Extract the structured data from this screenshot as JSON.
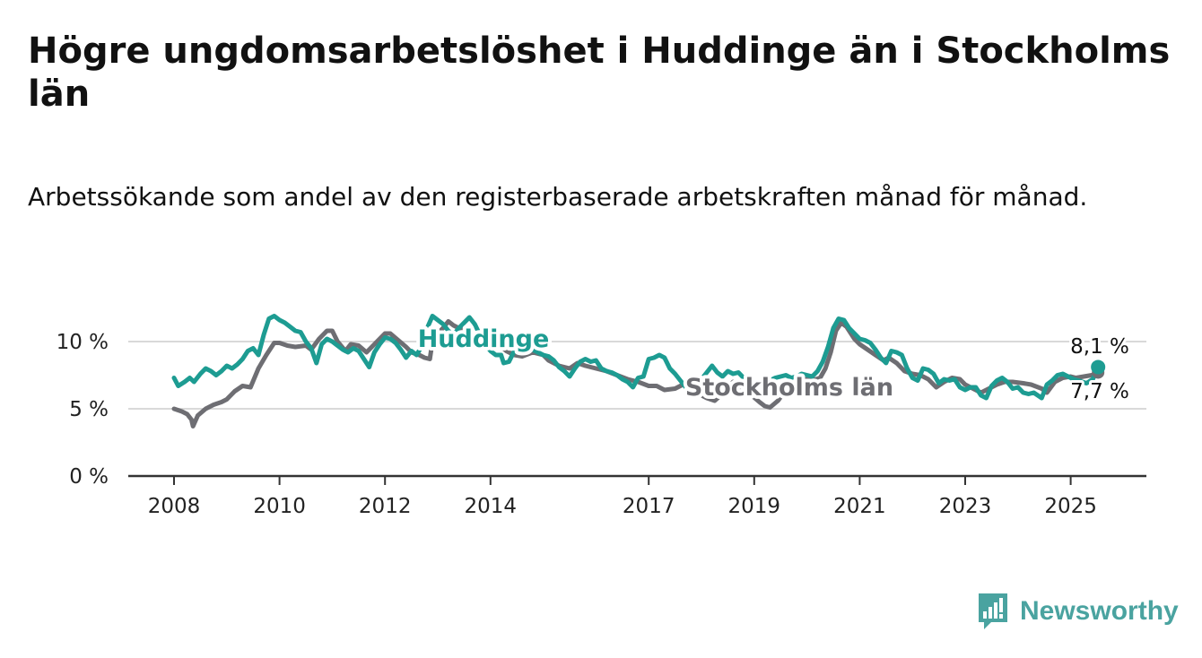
{
  "title": "Högre ungdomsarbetslöshet i Huddinge än i Stockholms län",
  "subtitle": "Arbetssökande som andel av den registerbaserade arbetskraften månad för månad.",
  "brand": {
    "name": "Newsworthy",
    "logo_icon": "bar-chart-logo-icon",
    "color": "#4aa3a0"
  },
  "chart_data": {
    "type": "line",
    "title": "Högre ungdomsarbetslöshet i Huddinge än i Stockholms län",
    "subtitle": "Arbetssökande som andel av den registerbaserade arbetskraften månad för månad.",
    "xlabel": "",
    "ylabel": "",
    "xlim": [
      2007.8,
      2026.3
    ],
    "ylim": [
      0,
      12.5
    ],
    "yticks": [
      0,
      5,
      10
    ],
    "ytick_labels": [
      "0 %",
      "5 %",
      "10 %"
    ],
    "xticks": [
      2008,
      2010,
      2012,
      2014,
      2017,
      2019,
      2021,
      2023,
      2025
    ],
    "xtick_labels": [
      "2008",
      "2010",
      "2012",
      "2014",
      "2017",
      "2019",
      "2021",
      "2023",
      "2025"
    ],
    "grid": true,
    "legend": "inline labels",
    "series": [
      {
        "name": "Stockholms län",
        "color": "#6e6e73",
        "end_label": "7,7 %",
        "points": [
          [
            2008.0,
            5.0
          ],
          [
            2008.15,
            4.8
          ],
          [
            2008.25,
            4.6
          ],
          [
            2008.33,
            4.2
          ],
          [
            2008.36,
            3.7
          ],
          [
            2008.45,
            4.5
          ],
          [
            2008.6,
            5.0
          ],
          [
            2008.75,
            5.3
          ],
          [
            2008.9,
            5.5
          ],
          [
            2009.0,
            5.7
          ],
          [
            2009.15,
            6.3
          ],
          [
            2009.3,
            6.7
          ],
          [
            2009.45,
            6.6
          ],
          [
            2009.6,
            8.0
          ],
          [
            2009.75,
            9.0
          ],
          [
            2009.9,
            9.9
          ],
          [
            2010.0,
            9.9
          ],
          [
            2010.15,
            9.7
          ],
          [
            2010.3,
            9.6
          ],
          [
            2010.5,
            9.7
          ],
          [
            2010.6,
            9.4
          ],
          [
            2010.75,
            10.2
          ],
          [
            2010.9,
            10.8
          ],
          [
            2011.0,
            10.8
          ],
          [
            2011.1,
            10.0
          ],
          [
            2011.25,
            9.3
          ],
          [
            2011.35,
            9.8
          ],
          [
            2011.5,
            9.7
          ],
          [
            2011.65,
            9.2
          ],
          [
            2011.75,
            9.6
          ],
          [
            2011.9,
            10.2
          ],
          [
            2012.0,
            10.6
          ],
          [
            2012.1,
            10.6
          ],
          [
            2012.25,
            10.1
          ],
          [
            2012.4,
            9.6
          ],
          [
            2012.5,
            9.2
          ],
          [
            2012.65,
            9.0
          ],
          [
            2012.75,
            8.8
          ],
          [
            2012.85,
            8.7
          ],
          [
            2012.9,
            10.0
          ],
          [
            2013.0,
            10.6
          ],
          [
            2013.1,
            11.0
          ],
          [
            2013.2,
            11.5
          ],
          [
            2013.3,
            11.2
          ],
          [
            2013.5,
            10.8
          ],
          [
            2013.7,
            10.5
          ],
          [
            2013.85,
            10.4
          ],
          [
            2014.0,
            10.2
          ],
          [
            2014.15,
            9.8
          ],
          [
            2014.3,
            9.3
          ],
          [
            2014.45,
            9.0
          ],
          [
            2014.6,
            8.9
          ],
          [
            2014.8,
            9.2
          ],
          [
            2015.0,
            9.0
          ],
          [
            2015.1,
            8.6
          ],
          [
            2015.3,
            8.2
          ],
          [
            2015.5,
            8.0
          ],
          [
            2015.65,
            8.4
          ],
          [
            2015.8,
            8.2
          ],
          [
            2016.0,
            8.0
          ],
          [
            2016.2,
            7.8
          ],
          [
            2016.4,
            7.5
          ],
          [
            2016.6,
            7.2
          ],
          [
            2016.8,
            7.0
          ],
          [
            2017.0,
            6.7
          ],
          [
            2017.15,
            6.7
          ],
          [
            2017.3,
            6.4
          ],
          [
            2017.5,
            6.5
          ],
          [
            2017.65,
            6.8
          ],
          [
            2017.8,
            6.6
          ],
          [
            2018.0,
            6.0
          ],
          [
            2018.1,
            5.8
          ],
          [
            2018.25,
            5.6
          ],
          [
            2018.45,
            6.3
          ],
          [
            2018.6,
            7.0
          ],
          [
            2018.8,
            6.4
          ],
          [
            2018.95,
            6.0
          ],
          [
            2019.1,
            5.5
          ],
          [
            2019.2,
            5.2
          ],
          [
            2019.3,
            5.1
          ],
          [
            2019.45,
            5.6
          ],
          [
            2019.6,
            6.4
          ],
          [
            2019.8,
            7.0
          ],
          [
            2019.95,
            7.2
          ],
          [
            2020.1,
            7.1
          ],
          [
            2020.25,
            7.3
          ],
          [
            2020.35,
            8.0
          ],
          [
            2020.45,
            9.2
          ],
          [
            2020.55,
            10.8
          ],
          [
            2020.65,
            11.4
          ],
          [
            2020.75,
            11.1
          ],
          [
            2020.9,
            10.2
          ],
          [
            2021.0,
            9.8
          ],
          [
            2021.15,
            9.4
          ],
          [
            2021.3,
            9.0
          ],
          [
            2021.45,
            8.6
          ],
          [
            2021.55,
            8.8
          ],
          [
            2021.7,
            8.4
          ],
          [
            2021.85,
            7.8
          ],
          [
            2022.0,
            7.6
          ],
          [
            2022.15,
            7.5
          ],
          [
            2022.3,
            7.2
          ],
          [
            2022.45,
            6.6
          ],
          [
            2022.6,
            7.0
          ],
          [
            2022.75,
            7.3
          ],
          [
            2022.9,
            7.2
          ],
          [
            2023.0,
            6.8
          ],
          [
            2023.15,
            6.5
          ],
          [
            2023.3,
            6.2
          ],
          [
            2023.45,
            6.5
          ],
          [
            2023.6,
            6.8
          ],
          [
            2023.75,
            7.0
          ],
          [
            2023.9,
            7.0
          ],
          [
            2024.1,
            6.9
          ],
          [
            2024.25,
            6.8
          ],
          [
            2024.45,
            6.5
          ],
          [
            2024.55,
            6.2
          ],
          [
            2024.7,
            7.0
          ],
          [
            2024.85,
            7.3
          ],
          [
            2025.0,
            7.4
          ],
          [
            2025.1,
            7.3
          ],
          [
            2025.25,
            7.4
          ],
          [
            2025.4,
            7.5
          ],
          [
            2025.52,
            7.7
          ]
        ]
      },
      {
        "name": "Huddinge",
        "color": "#1d9c92",
        "end_label": "8,1 %",
        "points": [
          [
            2008.0,
            7.3
          ],
          [
            2008.08,
            6.7
          ],
          [
            2008.2,
            7.0
          ],
          [
            2008.3,
            7.3
          ],
          [
            2008.38,
            7.0
          ],
          [
            2008.5,
            7.6
          ],
          [
            2008.6,
            8.0
          ],
          [
            2008.7,
            7.8
          ],
          [
            2008.8,
            7.5
          ],
          [
            2008.9,
            7.8
          ],
          [
            2009.0,
            8.2
          ],
          [
            2009.1,
            8.0
          ],
          [
            2009.2,
            8.3
          ],
          [
            2009.3,
            8.7
          ],
          [
            2009.4,
            9.3
          ],
          [
            2009.5,
            9.5
          ],
          [
            2009.6,
            9.0
          ],
          [
            2009.7,
            10.5
          ],
          [
            2009.8,
            11.7
          ],
          [
            2009.9,
            11.9
          ],
          [
            2010.0,
            11.6
          ],
          [
            2010.1,
            11.4
          ],
          [
            2010.2,
            11.1
          ],
          [
            2010.3,
            10.8
          ],
          [
            2010.4,
            10.7
          ],
          [
            2010.5,
            10.0
          ],
          [
            2010.6,
            9.5
          ],
          [
            2010.7,
            8.4
          ],
          [
            2010.8,
            9.8
          ],
          [
            2010.9,
            10.2
          ],
          [
            2011.0,
            10.0
          ],
          [
            2011.1,
            9.7
          ],
          [
            2011.2,
            9.4
          ],
          [
            2011.3,
            9.2
          ],
          [
            2011.4,
            9.5
          ],
          [
            2011.5,
            9.3
          ],
          [
            2011.6,
            8.7
          ],
          [
            2011.7,
            8.1
          ],
          [
            2011.8,
            9.2
          ],
          [
            2011.9,
            9.8
          ],
          [
            2012.0,
            10.3
          ],
          [
            2012.1,
            10.2
          ],
          [
            2012.2,
            9.9
          ],
          [
            2012.3,
            9.4
          ],
          [
            2012.4,
            8.8
          ],
          [
            2012.5,
            9.3
          ],
          [
            2012.6,
            9.0
          ],
          [
            2012.7,
            9.7
          ],
          [
            2012.8,
            11.0
          ],
          [
            2012.9,
            11.9
          ],
          [
            2013.0,
            11.6
          ],
          [
            2013.1,
            11.3
          ],
          [
            2013.2,
            10.8
          ],
          [
            2013.3,
            10.5
          ],
          [
            2013.4,
            11.0
          ],
          [
            2013.5,
            11.4
          ],
          [
            2013.6,
            11.8
          ],
          [
            2013.7,
            11.3
          ],
          [
            2013.8,
            10.5
          ],
          [
            2013.9,
            9.8
          ],
          [
            2014.0,
            9.3
          ],
          [
            2014.1,
            9.0
          ],
          [
            2014.2,
            9.0
          ],
          [
            2014.25,
            8.4
          ],
          [
            2014.35,
            8.5
          ],
          [
            2014.45,
            9.3
          ],
          [
            2014.6,
            9.6
          ],
          [
            2014.75,
            9.5
          ],
          [
            2014.9,
            9.2
          ],
          [
            2015.0,
            9.0
          ],
          [
            2015.1,
            8.9
          ],
          [
            2015.2,
            8.6
          ],
          [
            2015.3,
            8.1
          ],
          [
            2015.4,
            7.8
          ],
          [
            2015.5,
            7.4
          ],
          [
            2015.6,
            8.0
          ],
          [
            2015.7,
            8.5
          ],
          [
            2015.8,
            8.7
          ],
          [
            2015.9,
            8.5
          ],
          [
            2016.0,
            8.6
          ],
          [
            2016.1,
            8.0
          ],
          [
            2016.2,
            7.8
          ],
          [
            2016.3,
            7.7
          ],
          [
            2016.4,
            7.5
          ],
          [
            2016.5,
            7.2
          ],
          [
            2016.6,
            7.0
          ],
          [
            2016.7,
            6.6
          ],
          [
            2016.8,
            7.3
          ],
          [
            2016.9,
            7.4
          ],
          [
            2017.0,
            8.7
          ],
          [
            2017.1,
            8.8
          ],
          [
            2017.2,
            9.0
          ],
          [
            2017.3,
            8.8
          ],
          [
            2017.4,
            8.0
          ],
          [
            2017.5,
            7.6
          ],
          [
            2017.6,
            7.1
          ],
          [
            2017.7,
            6.6
          ],
          [
            2017.8,
            6.4
          ],
          [
            2017.9,
            6.9
          ],
          [
            2018.0,
            7.2
          ],
          [
            2018.1,
            7.7
          ],
          [
            2018.2,
            8.2
          ],
          [
            2018.3,
            7.7
          ],
          [
            2018.4,
            7.4
          ],
          [
            2018.5,
            7.8
          ],
          [
            2018.6,
            7.6
          ],
          [
            2018.7,
            7.7
          ],
          [
            2018.8,
            7.3
          ],
          [
            2018.9,
            7.1
          ],
          [
            2019.0,
            6.8
          ],
          [
            2019.1,
            6.6
          ],
          [
            2019.2,
            6.9
          ],
          [
            2019.3,
            7.1
          ],
          [
            2019.4,
            7.3
          ],
          [
            2019.5,
            7.4
          ],
          [
            2019.6,
            7.5
          ],
          [
            2019.7,
            7.3
          ],
          [
            2019.8,
            7.4
          ],
          [
            2019.9,
            7.6
          ],
          [
            2020.0,
            7.5
          ],
          [
            2020.1,
            7.4
          ],
          [
            2020.2,
            7.8
          ],
          [
            2020.3,
            8.5
          ],
          [
            2020.4,
            9.6
          ],
          [
            2020.5,
            11.0
          ],
          [
            2020.6,
            11.7
          ],
          [
            2020.7,
            11.6
          ],
          [
            2020.8,
            11.0
          ],
          [
            2020.9,
            10.6
          ],
          [
            2021.0,
            10.2
          ],
          [
            2021.1,
            10.1
          ],
          [
            2021.2,
            9.9
          ],
          [
            2021.3,
            9.4
          ],
          [
            2021.4,
            8.8
          ],
          [
            2021.5,
            8.4
          ],
          [
            2021.6,
            9.3
          ],
          [
            2021.7,
            9.2
          ],
          [
            2021.8,
            9.0
          ],
          [
            2021.9,
            8.0
          ],
          [
            2022.0,
            7.3
          ],
          [
            2022.1,
            7.1
          ],
          [
            2022.2,
            8.0
          ],
          [
            2022.3,
            7.9
          ],
          [
            2022.4,
            7.6
          ],
          [
            2022.5,
            6.9
          ],
          [
            2022.6,
            7.2
          ],
          [
            2022.7,
            7.1
          ],
          [
            2022.8,
            7.2
          ],
          [
            2022.9,
            6.6
          ],
          [
            2023.0,
            6.4
          ],
          [
            2023.1,
            6.6
          ],
          [
            2023.2,
            6.6
          ],
          [
            2023.3,
            6.0
          ],
          [
            2023.4,
            5.8
          ],
          [
            2023.5,
            6.7
          ],
          [
            2023.6,
            7.1
          ],
          [
            2023.7,
            7.3
          ],
          [
            2023.8,
            7.0
          ],
          [
            2023.9,
            6.5
          ],
          [
            2024.0,
            6.6
          ],
          [
            2024.1,
            6.2
          ],
          [
            2024.2,
            6.1
          ],
          [
            2024.3,
            6.2
          ],
          [
            2024.45,
            5.8
          ],
          [
            2024.55,
            6.8
          ],
          [
            2024.65,
            7.1
          ],
          [
            2024.75,
            7.5
          ],
          [
            2024.85,
            7.6
          ],
          [
            2024.95,
            7.4
          ],
          [
            2025.05,
            7.2
          ],
          [
            2025.15,
            7.1
          ],
          [
            2025.3,
            6.9
          ],
          [
            2025.42,
            7.2
          ],
          [
            2025.52,
            8.1
          ]
        ]
      }
    ]
  }
}
